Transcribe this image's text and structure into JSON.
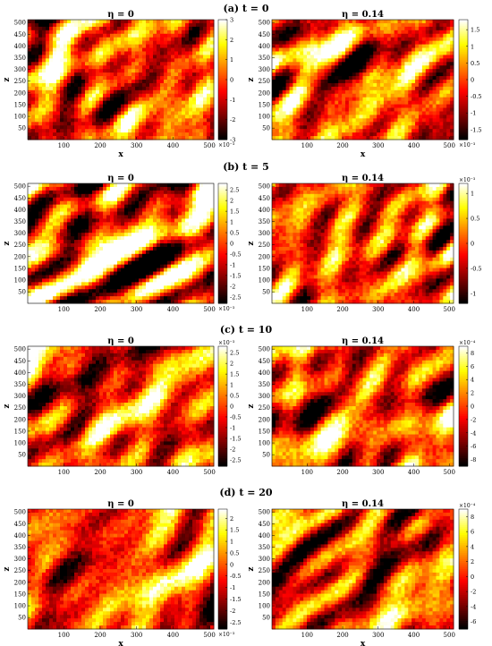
{
  "figure": {
    "rows": [
      {
        "title": "(a)  t = 0"
      },
      {
        "title": "(b)  t = 5"
      },
      {
        "title": "(c)  t = 10"
      },
      {
        "title": "(d)  t = 20"
      }
    ]
  },
  "chart_data": [
    {
      "type": "heatmap",
      "panel": "a-left",
      "title": "η = 0",
      "xlabel": "x",
      "ylabel": "z",
      "xlim": [
        1,
        512
      ],
      "ylim": [
        1,
        512
      ],
      "xticks": [
        "100",
        "200",
        "300",
        "400",
        "500"
      ],
      "yticks": [
        "50",
        "100",
        "150",
        "200",
        "250",
        "300",
        "350",
        "400",
        "450",
        "500"
      ],
      "colorbar": {
        "ticks": [
          "3",
          "2",
          "1",
          "0",
          "-1",
          "-2",
          "-3"
        ],
        "range": [
          -3,
          3
        ],
        "exponent_label": "×10⁻³"
      },
      "colormap": "hot",
      "seed": 11
    },
    {
      "type": "heatmap",
      "panel": "a-right",
      "title": "η = 0.14",
      "xlabel": "x",
      "ylabel": "z",
      "xlim": [
        1,
        512
      ],
      "ylim": [
        1,
        512
      ],
      "xticks": [
        "100",
        "200",
        "300",
        "400",
        "500"
      ],
      "yticks": [
        "50",
        "100",
        "150",
        "200",
        "250",
        "300",
        "350",
        "400",
        "450",
        "500"
      ],
      "colorbar": {
        "ticks": [
          "1.5",
          "1",
          "0.5",
          "0",
          "-0.5",
          "-1",
          "-1.5"
        ],
        "range": [
          -1.8,
          1.8
        ],
        "exponent_label": "×10⁻³"
      },
      "colormap": "hot",
      "seed": 23
    },
    {
      "type": "heatmap",
      "panel": "b-left",
      "title": "η = 0",
      "xlabel": "",
      "ylabel": "z",
      "xlim": [
        1,
        512
      ],
      "ylim": [
        1,
        512
      ],
      "xticks": [
        "100",
        "200",
        "300",
        "400",
        "500"
      ],
      "yticks": [
        "50",
        "100",
        "150",
        "200",
        "250",
        "300",
        "350",
        "400",
        "450",
        "500"
      ],
      "colorbar": {
        "ticks": [
          "2.5",
          "2",
          "1.5",
          "1",
          "0.5",
          "0",
          "-0.5",
          "-1",
          "-1.5",
          "-2",
          "-2.5"
        ],
        "range": [
          -2.8,
          2.8
        ],
        "exponent_label": "×10⁻³"
      },
      "colormap": "hot",
      "seed": 37
    },
    {
      "type": "heatmap",
      "panel": "b-right",
      "title": "η = 0.14",
      "xlabel": "",
      "ylabel": "z",
      "xlim": [
        1,
        512
      ],
      "ylim": [
        1,
        512
      ],
      "xticks": [
        "100",
        "200",
        "300",
        "400",
        "500"
      ],
      "yticks": [
        "50",
        "100",
        "150",
        "200",
        "250",
        "300",
        "350",
        "400",
        "450",
        "500"
      ],
      "colorbar": {
        "ticks": [
          "1",
          "0.5",
          "0",
          "-0.5",
          "-1"
        ],
        "range": [
          -1.2,
          1.2
        ],
        "exponent_label": "×10⁻³",
        "exponent_top": true
      },
      "colormap": "hot",
      "seed": 41
    },
    {
      "type": "heatmap",
      "panel": "c-left",
      "title": "η = 0",
      "xlabel": "",
      "ylabel": "z",
      "xlim": [
        1,
        512
      ],
      "ylim": [
        1,
        512
      ],
      "xticks": [
        "100",
        "200",
        "300",
        "400",
        "500"
      ],
      "yticks": [
        "50",
        "100",
        "150",
        "200",
        "250",
        "300",
        "350",
        "400",
        "450",
        "500"
      ],
      "colorbar": {
        "ticks": [
          "2.5",
          "2",
          "1.5",
          "1",
          "0.5",
          "0",
          "-0.5",
          "-1",
          "-1.5",
          "-2",
          "-2.5"
        ],
        "range": [
          -2.8,
          2.8
        ],
        "exponent_label": "×10⁻³",
        "exponent_top": true
      },
      "colormap": "hot",
      "seed": 53
    },
    {
      "type": "heatmap",
      "panel": "c-right",
      "title": "η = 0.14",
      "xlabel": "",
      "ylabel": "z",
      "xlim": [
        1,
        512
      ],
      "ylim": [
        1,
        512
      ],
      "xticks": [
        "100",
        "200",
        "300",
        "400",
        "500"
      ],
      "yticks": [
        "50",
        "100",
        "150",
        "200",
        "250",
        "300",
        "350",
        "400",
        "450",
        "500"
      ],
      "colorbar": {
        "ticks": [
          "8",
          "6",
          "4",
          "2",
          "0",
          "-2",
          "-4",
          "-6",
          "-8"
        ],
        "range": [
          -9,
          9
        ],
        "exponent_label": "×10⁻⁴",
        "exponent_top": true
      },
      "colormap": "hot",
      "seed": 67
    },
    {
      "type": "heatmap",
      "panel": "d-left",
      "title": "η = 0",
      "xlabel": "x",
      "ylabel": "z",
      "xlim": [
        1,
        512
      ],
      "ylim": [
        1,
        512
      ],
      "xticks": [
        "100",
        "200",
        "300",
        "400",
        "500"
      ],
      "yticks": [
        "50",
        "100",
        "150",
        "200",
        "250",
        "300",
        "350",
        "400",
        "450",
        "500"
      ],
      "colorbar": {
        "ticks": [
          "2",
          "1.5",
          "1",
          "0.5",
          "0",
          "-0.5",
          "-1",
          "-1.5",
          "-2",
          "-2.5"
        ],
        "range": [
          -2.8,
          2.4
        ],
        "exponent_label": "×10⁻³"
      },
      "colormap": "hot",
      "seed": 79
    },
    {
      "type": "heatmap",
      "panel": "d-right",
      "title": "η = 0.14",
      "xlabel": "x",
      "ylabel": "z",
      "xlim": [
        1,
        512
      ],
      "ylim": [
        1,
        512
      ],
      "xticks": [
        "100",
        "200",
        "300",
        "400",
        "500"
      ],
      "yticks": [
        "50",
        "100",
        "150",
        "200",
        "250",
        "300",
        "350",
        "400",
        "450",
        "500"
      ],
      "colorbar": {
        "ticks": [
          "8",
          "6",
          "4",
          "2",
          "0",
          "-2",
          "-4",
          "-6"
        ],
        "range": [
          -7,
          9
        ],
        "exponent_label": "×10⁻⁴",
        "exponent_top": true
      },
      "colormap": "hot",
      "seed": 97
    }
  ]
}
